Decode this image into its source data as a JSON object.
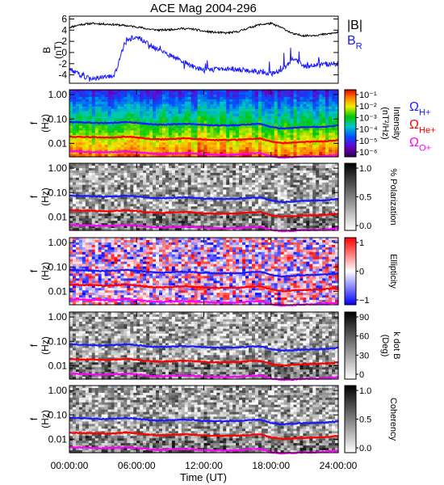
{
  "title": "ACE Mag 2004-296",
  "colors": {
    "black": "#000000",
    "blue": "#1a1aff",
    "red": "#ff0000",
    "magenta": "#ff00ff"
  },
  "chart_data": [
    {
      "type": "line",
      "panel": "magnetic-field",
      "ylabel": "B",
      "yunit": "(nT)",
      "ylim": [
        -5.5,
        6.5
      ],
      "yticks": [
        "6",
        "4",
        "2",
        "0",
        "-2",
        "-4"
      ],
      "legend": [
        {
          "name": "|B|",
          "color": "#000000"
        },
        {
          "name": "B",
          "sub": "R",
          "color": "#1a1aff"
        }
      ],
      "x": [
        0,
        1,
        2,
        3,
        4,
        5,
        6,
        7,
        8,
        9,
        10,
        11,
        12,
        13,
        14,
        15,
        16,
        17,
        18,
        19,
        20,
        21,
        22,
        23,
        24
      ],
      "series": [
        {
          "name": "|B|",
          "color": "#000000",
          "values": [
            4.5,
            5.0,
            5.2,
            5.1,
            5.0,
            4.8,
            4.6,
            4.2,
            4.0,
            4.1,
            4.3,
            4.2,
            3.8,
            3.6,
            3.5,
            3.7,
            4.4,
            5.0,
            5.2,
            4.4,
            3.3,
            3.0,
            3.1,
            3.3,
            3.6
          ]
        },
        {
          "name": "B",
          "sub": "R",
          "color": "#1a1aff",
          "values": [
            -3.0,
            -4.0,
            -4.6,
            -4.5,
            -4.2,
            2.0,
            3.0,
            1.5,
            0.5,
            -0.5,
            -1.5,
            -2.5,
            -3.2,
            -3.0,
            -2.8,
            -3.0,
            -3.2,
            -3.5,
            -3.8,
            -3.2,
            -1.0,
            -2.5,
            -2.2,
            -2.0,
            -2.0
          ]
        }
      ]
    },
    {
      "type": "heatmap",
      "panel": "power-spectrum",
      "ylabel": "f",
      "yunit": "(Hz)",
      "yscale": "log",
      "yticks": [
        "1.00",
        "0.10",
        "0.01"
      ],
      "colorbar": {
        "label": "Intensity",
        "unit": "(nT²/Hz)",
        "scale": "log",
        "ticks": [
          "10⁻¹",
          "10⁻²",
          "10⁻³",
          "10⁻⁴",
          "10⁻⁵",
          "10⁻⁶"
        ],
        "colormap": "rainbow"
      },
      "legend": [
        {
          "name": "Ω",
          "sub": "H+",
          "color": "#1a1aff"
        },
        {
          "name": "Ω",
          "sub": "He+",
          "color": "#ff0000"
        },
        {
          "name": "Ω",
          "sub": "O+",
          "color": "#ff00ff"
        }
      ]
    },
    {
      "type": "heatmap",
      "panel": "polarization",
      "ylabel": "f",
      "yunit": "(Hz)",
      "yscale": "log",
      "yticks": [
        "1.00",
        "0.10",
        "0.01"
      ],
      "colorbar": {
        "label": "% Polarization",
        "ticks": [
          "1.0",
          "0.5",
          "0.0"
        ],
        "colormap": "gray"
      }
    },
    {
      "type": "heatmap",
      "panel": "ellipticity",
      "ylabel": "f",
      "yunit": "(Hz)",
      "yscale": "log",
      "yticks": [
        "1.00",
        "0.10",
        "0.01"
      ],
      "colorbar": {
        "label": "Ellipticity",
        "ticks": [
          "1",
          "0",
          "−1"
        ],
        "colormap": "blue-white-red"
      }
    },
    {
      "type": "heatmap",
      "panel": "k-dot-b",
      "ylabel": "f",
      "yunit": "(Hz)",
      "yscale": "log",
      "yticks": [
        "1.00",
        "0.10",
        "0.01"
      ],
      "colorbar": {
        "label": "k dot B",
        "unit": "(Deg)",
        "ticks": [
          "90",
          "60",
          "30",
          "0"
        ],
        "colormap": "gray"
      }
    },
    {
      "type": "heatmap",
      "panel": "coherency",
      "ylabel": "f",
      "yunit": "(Hz)",
      "yscale": "log",
      "yticks": [
        "1.00",
        "0.10",
        "0.01"
      ],
      "colorbar": {
        "label": "Coherency",
        "ticks": [
          "1.0",
          "0.5",
          "0.0"
        ],
        "colormap": "gray"
      }
    }
  ],
  "gyrofrequency_hz": {
    "hours": [
      0,
      1,
      2,
      3,
      4,
      5,
      6,
      7,
      8,
      9,
      10,
      11,
      12,
      13,
      14,
      15,
      16,
      17,
      18,
      19,
      20,
      21,
      22,
      23,
      24
    ],
    "H+": [
      0.075,
      0.073,
      0.07,
      0.068,
      0.07,
      0.075,
      0.07,
      0.062,
      0.058,
      0.06,
      0.064,
      0.062,
      0.057,
      0.055,
      0.055,
      0.056,
      0.06,
      0.064,
      0.047,
      0.041,
      0.043,
      0.046,
      0.047,
      0.049,
      0.055
    ],
    "He+": [
      0.019,
      0.018,
      0.018,
      0.017,
      0.0175,
      0.019,
      0.0175,
      0.0155,
      0.0145,
      0.015,
      0.016,
      0.0155,
      0.0143,
      0.0138,
      0.0138,
      0.014,
      0.015,
      0.016,
      0.0118,
      0.0103,
      0.0108,
      0.0115,
      0.0118,
      0.0123,
      0.0138
    ],
    "O+": [
      0.0047,
      0.0046,
      0.0044,
      0.0043,
      0.0044,
      0.0047,
      0.0044,
      0.0039,
      0.0036,
      0.0038,
      0.004,
      0.0039,
      0.0036,
      0.0034,
      0.0034,
      0.0035,
      0.0038,
      0.004,
      0.0029,
      0.0026,
      0.0027,
      0.0029,
      0.0029,
      0.0031,
      0.0034
    ]
  },
  "xaxis": {
    "label": "Time (UT)",
    "ticks": [
      "00:00:00",
      "06:00:00",
      "12:00:00",
      "18:00:00",
      "24:00:00"
    ],
    "range_hours": [
      0,
      24
    ]
  }
}
